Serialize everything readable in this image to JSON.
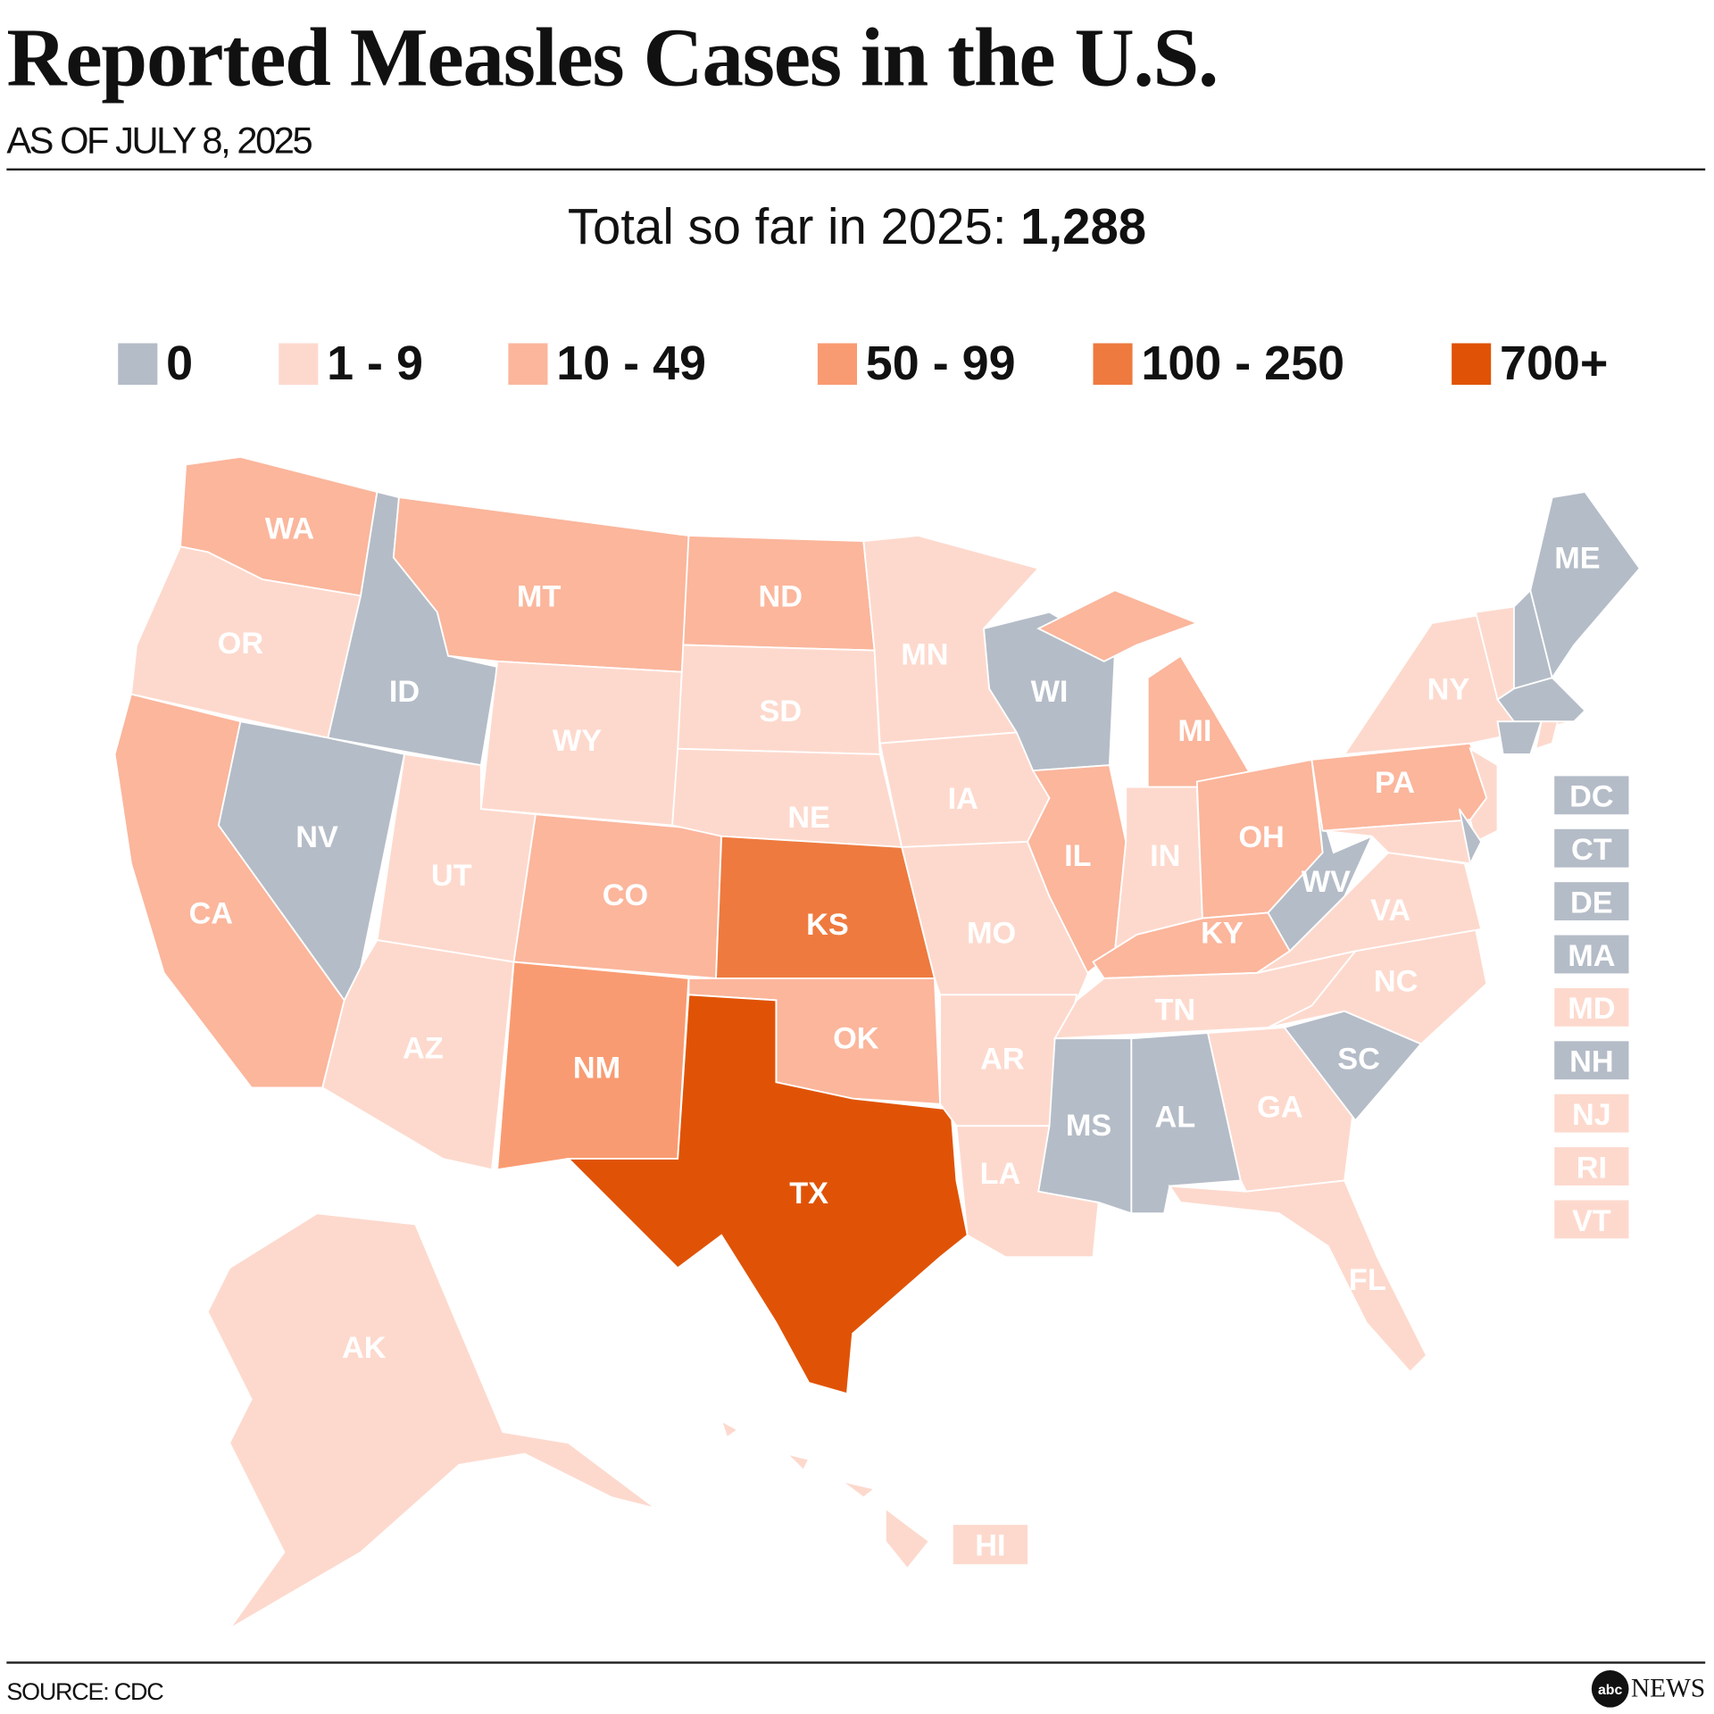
{
  "header": {
    "title": "Reported Measles Cases in the U.S.",
    "subtitle": "AS OF JULY 8, 2025"
  },
  "total": {
    "label": "Total so far in 2025:",
    "value": "1,288"
  },
  "legend": [
    {
      "label": "0",
      "color": "#b4bcc7"
    },
    {
      "label": "1 - 9",
      "color": "#fdd9cd"
    },
    {
      "label": "10 - 49",
      "color": "#fbb69c"
    },
    {
      "label": "50 - 99",
      "color": "#f99b72"
    },
    {
      "label": "100 - 250",
      "color": "#ee7a3f"
    },
    {
      "label": "700+",
      "color": "#e05306"
    }
  ],
  "states": [
    {
      "code": "WA",
      "bin": 2
    },
    {
      "code": "OR",
      "bin": 1
    },
    {
      "code": "CA",
      "bin": 2
    },
    {
      "code": "ID",
      "bin": 0
    },
    {
      "code": "NV",
      "bin": 0
    },
    {
      "code": "MT",
      "bin": 2
    },
    {
      "code": "WY",
      "bin": 1
    },
    {
      "code": "UT",
      "bin": 1
    },
    {
      "code": "AZ",
      "bin": 1
    },
    {
      "code": "CO",
      "bin": 2
    },
    {
      "code": "NM",
      "bin": 3
    },
    {
      "code": "ND",
      "bin": 2
    },
    {
      "code": "SD",
      "bin": 1
    },
    {
      "code": "NE",
      "bin": 1
    },
    {
      "code": "KS",
      "bin": 4
    },
    {
      "code": "OK",
      "bin": 2
    },
    {
      "code": "TX",
      "bin": 5
    },
    {
      "code": "MN",
      "bin": 1
    },
    {
      "code": "IA",
      "bin": 1
    },
    {
      "code": "MO",
      "bin": 1
    },
    {
      "code": "AR",
      "bin": 1
    },
    {
      "code": "LA",
      "bin": 1
    },
    {
      "code": "WI",
      "bin": 0
    },
    {
      "code": "IL",
      "bin": 2
    },
    {
      "code": "MI",
      "bin": 2
    },
    {
      "code": "IN",
      "bin": 1
    },
    {
      "code": "OH",
      "bin": 2
    },
    {
      "code": "KY",
      "bin": 2
    },
    {
      "code": "TN",
      "bin": 1
    },
    {
      "code": "MS",
      "bin": 0
    },
    {
      "code": "AL",
      "bin": 0
    },
    {
      "code": "GA",
      "bin": 1
    },
    {
      "code": "FL",
      "bin": 1
    },
    {
      "code": "SC",
      "bin": 0
    },
    {
      "code": "NC",
      "bin": 1
    },
    {
      "code": "VA",
      "bin": 1
    },
    {
      "code": "WV",
      "bin": 0
    },
    {
      "code": "PA",
      "bin": 2
    },
    {
      "code": "NY",
      "bin": 1
    },
    {
      "code": "NJ",
      "bin": 1
    },
    {
      "code": "MD",
      "bin": 1
    },
    {
      "code": "DE",
      "bin": 0
    },
    {
      "code": "VT",
      "bin": 1
    },
    {
      "code": "NH",
      "bin": 0
    },
    {
      "code": "ME",
      "bin": 0
    },
    {
      "code": "MA",
      "bin": 0
    },
    {
      "code": "CT",
      "bin": 0
    },
    {
      "code": "RI",
      "bin": 1
    },
    {
      "code": "AK",
      "bin": 1
    },
    {
      "code": "HI",
      "bin": 1
    }
  ],
  "small_states": [
    {
      "code": "DC",
      "bin": 0
    },
    {
      "code": "CT",
      "bin": 0
    },
    {
      "code": "DE",
      "bin": 0
    },
    {
      "code": "MA",
      "bin": 0
    },
    {
      "code": "MD",
      "bin": 1
    },
    {
      "code": "NH",
      "bin": 0
    },
    {
      "code": "NJ",
      "bin": 1
    },
    {
      "code": "RI",
      "bin": 1
    },
    {
      "code": "VT",
      "bin": 1
    }
  ],
  "footer": {
    "source": "SOURCE: CDC",
    "logo_mark": "abc",
    "logo_text": "NEWS"
  }
}
